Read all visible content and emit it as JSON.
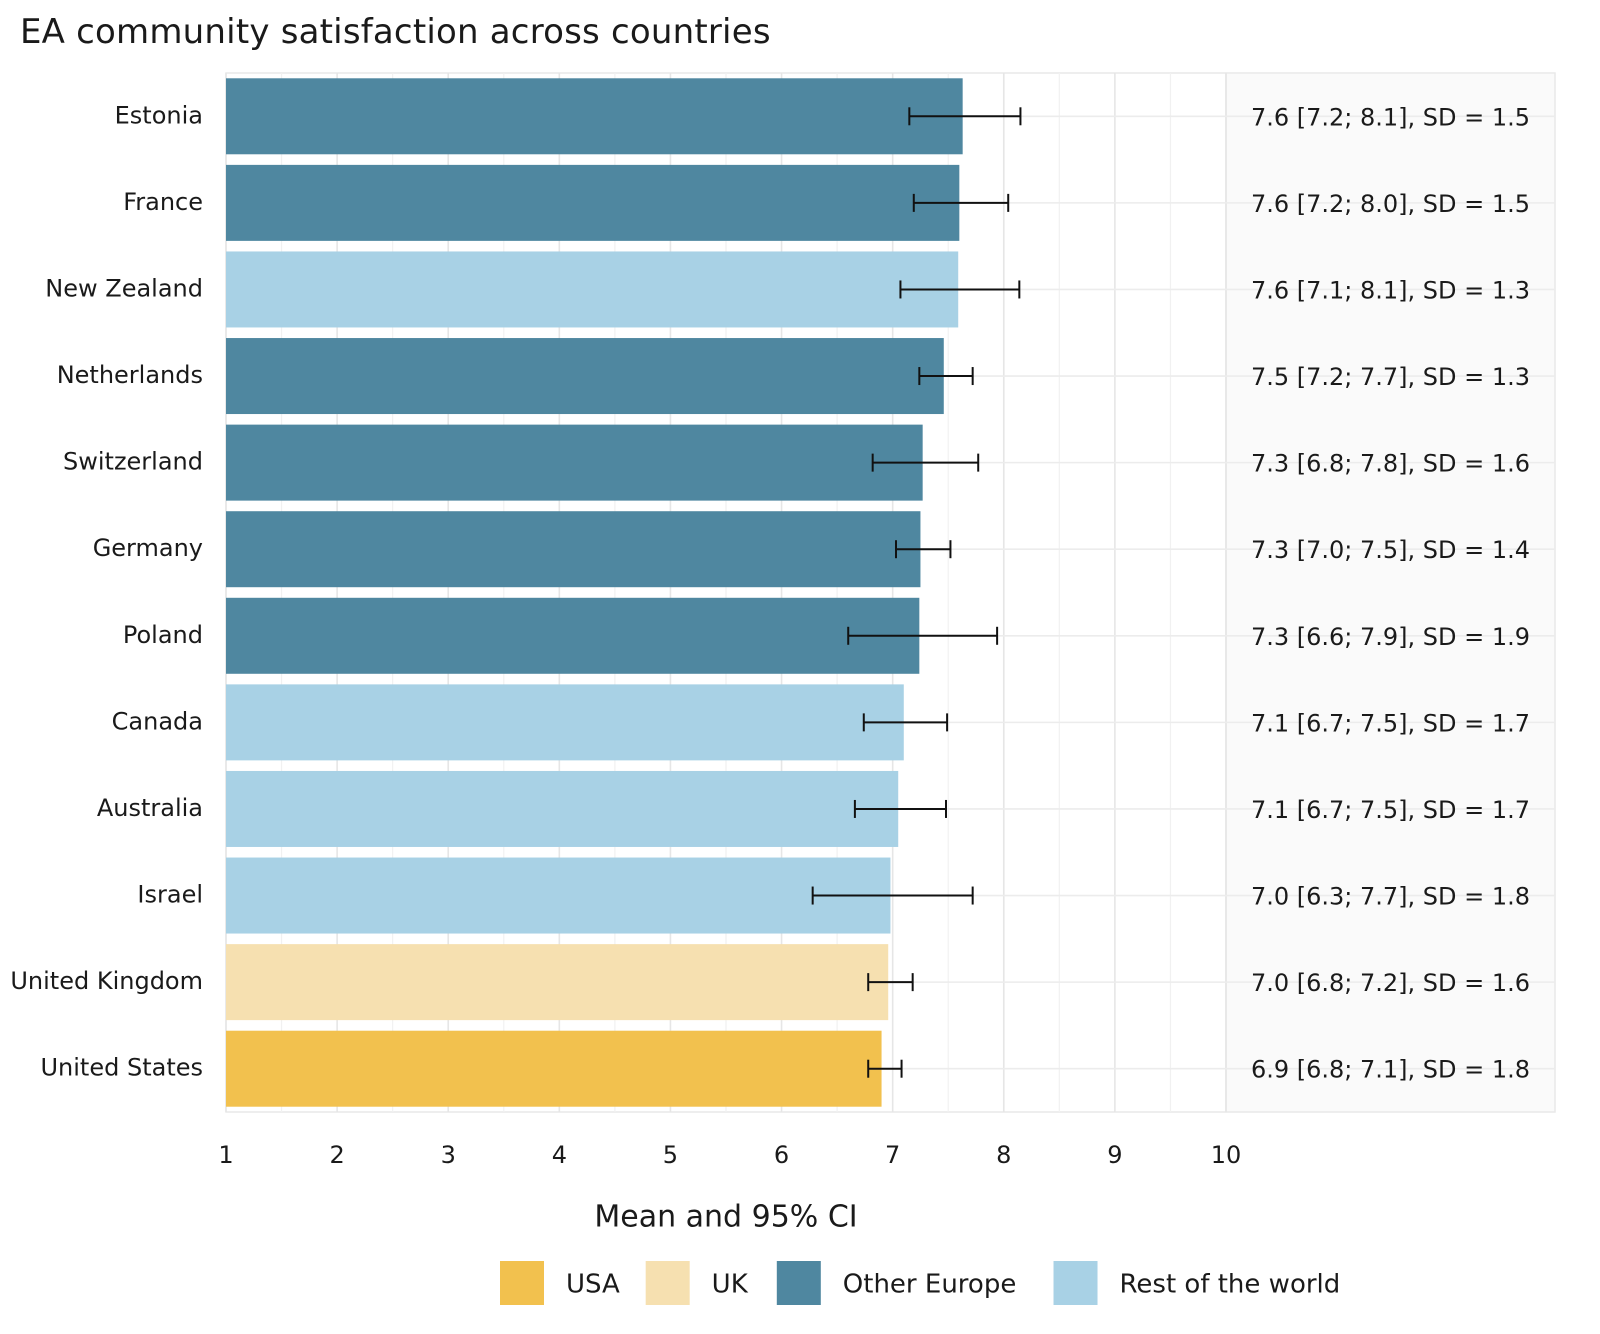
{
  "chart_data": {
    "type": "bar",
    "orientation": "horizontal",
    "title": "EA community satisfaction across countries",
    "xlabel": "Mean and 95% CI",
    "ylabel": "",
    "xlim": [
      1,
      10
    ],
    "x_ticks": [
      1,
      2,
      3,
      4,
      5,
      6,
      7,
      8,
      9,
      10
    ],
    "grid": true,
    "legend_position": "bottom",
    "groups": [
      {
        "name": "USA",
        "color": "#F2C14E"
      },
      {
        "name": "UK",
        "color": "#F6E0B0"
      },
      {
        "name": "Other Europe",
        "color": "#4F87A0"
      },
      {
        "name": "Rest of the world",
        "color": "#A8D1E5"
      }
    ],
    "bars": [
      {
        "country": "Estonia",
        "group": "Other Europe",
        "mean": 7.63,
        "ci_low": 7.15,
        "ci_high": 8.15,
        "label": "7.6 [7.2; 8.1], SD = 1.5"
      },
      {
        "country": "France",
        "group": "Other Europe",
        "mean": 7.6,
        "ci_low": 7.19,
        "ci_high": 8.04,
        "label": "7.6 [7.2; 8.0], SD = 1.5"
      },
      {
        "country": "New Zealand",
        "group": "Rest of the world",
        "mean": 7.59,
        "ci_low": 7.07,
        "ci_high": 8.14,
        "label": "7.6 [7.1; 8.1], SD = 1.3"
      },
      {
        "country": "Netherlands",
        "group": "Other Europe",
        "mean": 7.46,
        "ci_low": 7.24,
        "ci_high": 7.72,
        "label": "7.5 [7.2; 7.7], SD = 1.3"
      },
      {
        "country": "Switzerland",
        "group": "Other Europe",
        "mean": 7.27,
        "ci_low": 6.82,
        "ci_high": 7.77,
        "label": "7.3 [6.8; 7.8], SD = 1.6"
      },
      {
        "country": "Germany",
        "group": "Other Europe",
        "mean": 7.25,
        "ci_low": 7.03,
        "ci_high": 7.52,
        "label": "7.3 [7.0; 7.5], SD = 1.4"
      },
      {
        "country": "Poland",
        "group": "Other Europe",
        "mean": 7.24,
        "ci_low": 6.6,
        "ci_high": 7.94,
        "label": "7.3 [6.6; 7.9], SD = 1.9"
      },
      {
        "country": "Canada",
        "group": "Rest of the world",
        "mean": 7.1,
        "ci_low": 6.74,
        "ci_high": 7.49,
        "label": "7.1 [6.7; 7.5], SD = 1.7"
      },
      {
        "country": "Australia",
        "group": "Rest of the world",
        "mean": 7.05,
        "ci_low": 6.66,
        "ci_high": 7.48,
        "label": "7.1 [6.7; 7.5], SD = 1.7"
      },
      {
        "country": "Israel",
        "group": "Rest of the world",
        "mean": 6.98,
        "ci_low": 6.28,
        "ci_high": 7.72,
        "label": "7.0 [6.3; 7.7], SD = 1.8"
      },
      {
        "country": "United Kingdom",
        "group": "UK",
        "mean": 6.96,
        "ci_low": 6.78,
        "ci_high": 7.18,
        "label": "7.0 [6.8; 7.2], SD = 1.6"
      },
      {
        "country": "United States",
        "group": "USA",
        "mean": 6.9,
        "ci_low": 6.78,
        "ci_high": 7.08,
        "label": "6.9 [6.8; 7.1], SD = 1.8"
      }
    ]
  }
}
